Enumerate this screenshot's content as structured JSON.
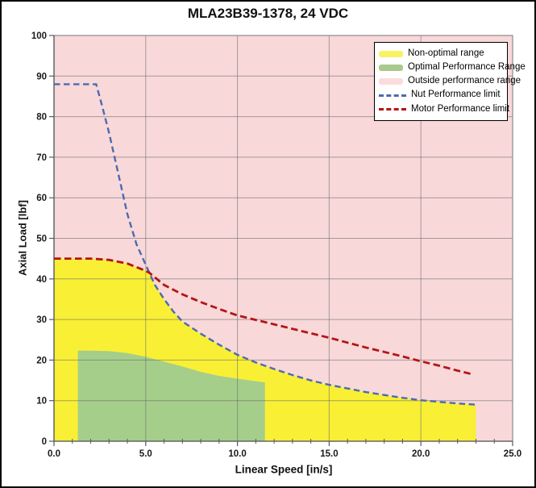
{
  "chart_data": {
    "type": "area",
    "title": "MLA23B39-1378, 24 VDC",
    "xlabel": "Linear Speed [in/s]",
    "ylabel": "Axial Load [lbf]",
    "xlim": [
      0,
      25
    ],
    "ylim": [
      0,
      100
    ],
    "grid": true,
    "x_major_ticks": [
      0,
      5,
      10,
      15,
      20,
      25
    ],
    "x_tick_labels": [
      "0.0",
      "5.0",
      "10.0",
      "15.0",
      "20.0",
      "25.0"
    ],
    "x_minor_tick_step": 1,
    "y_major_ticks": [
      0,
      10,
      20,
      30,
      40,
      50,
      60,
      70,
      80,
      90,
      100
    ],
    "y_tick_labels": [
      "0",
      "10",
      "20",
      "30",
      "40",
      "50",
      "60",
      "70",
      "80",
      "90",
      "100"
    ],
    "background_region": {
      "name": "Outside performance range",
      "color": "#F8D8D9"
    },
    "regions": [
      {
        "name": "Non-optimal range",
        "color": "#F9EF35",
        "points": [
          [
            0,
            0
          ],
          [
            0,
            45
          ],
          [
            1,
            45
          ],
          [
            2,
            45
          ],
          [
            3,
            44.7
          ],
          [
            4,
            43.8
          ],
          [
            5,
            42
          ],
          [
            5.2,
            41.5
          ],
          [
            5.5,
            38.5
          ],
          [
            6,
            35
          ],
          [
            6.5,
            32
          ],
          [
            7,
            29.5
          ],
          [
            8,
            26.5
          ],
          [
            9,
            23.8
          ],
          [
            10,
            21.3
          ],
          [
            11,
            19.4
          ],
          [
            12,
            17.8
          ],
          [
            13,
            16.3
          ],
          [
            14,
            15
          ],
          [
            15,
            13.9
          ],
          [
            16,
            13
          ],
          [
            17,
            12.1
          ],
          [
            18,
            11.4
          ],
          [
            19,
            10.7
          ],
          [
            20,
            10.1
          ],
          [
            21,
            9.7
          ],
          [
            22,
            9.3
          ],
          [
            23,
            9
          ],
          [
            23,
            0
          ]
        ]
      },
      {
        "name": "Optimal Performance Range",
        "color": "#A5CE8B",
        "points": [
          [
            1.3,
            0
          ],
          [
            1.3,
            22.3
          ],
          [
            2,
            22.3
          ],
          [
            3,
            22.2
          ],
          [
            4,
            21.7
          ],
          [
            5,
            20.8
          ],
          [
            6,
            19.6
          ],
          [
            7,
            18.4
          ],
          [
            8,
            17.1
          ],
          [
            9,
            16.1
          ],
          [
            10,
            15.4
          ],
          [
            11,
            14.8
          ],
          [
            11.5,
            14.5
          ],
          [
            11.5,
            0
          ]
        ]
      }
    ],
    "series": [
      {
        "name": "Nut Performance limit",
        "color": "#4C6BAF",
        "style": "dashed",
        "points": [
          [
            0,
            88
          ],
          [
            2.3,
            88
          ],
          [
            2.6,
            83
          ],
          [
            3,
            76
          ],
          [
            3.5,
            66
          ],
          [
            4,
            56
          ],
          [
            4.5,
            48.5
          ],
          [
            5,
            43.5
          ],
          [
            5.2,
            41.5
          ],
          [
            5.5,
            38.5
          ],
          [
            6,
            35
          ],
          [
            6.5,
            32
          ],
          [
            7,
            29.5
          ],
          [
            8,
            26.5
          ],
          [
            9,
            23.8
          ],
          [
            10,
            21.3
          ],
          [
            11,
            19.4
          ],
          [
            12,
            17.8
          ],
          [
            13,
            16.3
          ],
          [
            14,
            15
          ],
          [
            15,
            13.9
          ],
          [
            16,
            13
          ],
          [
            17,
            12.1
          ],
          [
            18,
            11.4
          ],
          [
            19,
            10.7
          ],
          [
            20,
            10.1
          ],
          [
            21,
            9.7
          ],
          [
            22,
            9.3
          ],
          [
            23,
            9
          ]
        ]
      },
      {
        "name": "Motor Performance limit",
        "color": "#B51414",
        "style": "dashed",
        "points": [
          [
            0,
            45
          ],
          [
            1,
            45
          ],
          [
            2,
            45
          ],
          [
            3,
            44.7
          ],
          [
            4,
            43.8
          ],
          [
            5,
            42
          ],
          [
            5.2,
            41.5
          ],
          [
            6,
            38.5
          ],
          [
            7,
            36.2
          ],
          [
            8,
            34.3
          ],
          [
            9,
            32.6
          ],
          [
            10,
            31
          ],
          [
            11,
            29.9
          ],
          [
            12,
            28.8
          ],
          [
            13,
            27.7
          ],
          [
            14,
            26.6
          ],
          [
            15,
            25.5
          ],
          [
            16,
            24.3
          ],
          [
            17,
            23.1
          ],
          [
            18,
            22
          ],
          [
            19,
            20.9
          ],
          [
            20,
            19.7
          ],
          [
            21,
            18.6
          ],
          [
            22,
            17.4
          ],
          [
            22.8,
            16.5
          ]
        ]
      }
    ],
    "legend": {
      "position": "top-right",
      "items": [
        {
          "label": "Non-optimal range",
          "marker": "area",
          "color": "#FBF263"
        },
        {
          "label": "Optimal Performance Range",
          "marker": "area",
          "color": "#A9C98D"
        },
        {
          "label": "Outside performance range",
          "marker": "area",
          "color": "#FBDCDD"
        },
        {
          "label": "Nut Performance limit",
          "marker": "dash",
          "color": "#4C6BAF"
        },
        {
          "label": "Motor Performance limit",
          "marker": "dash",
          "color": "#B51414"
        }
      ]
    },
    "colors": {
      "gridline": "#6E6E6E",
      "plot_border": "#8A8A8A",
      "axis_line": "#595959",
      "tick_label": "#1A1A1A",
      "figure_border": "#000000",
      "figure_background": "#FFFFFF"
    }
  }
}
